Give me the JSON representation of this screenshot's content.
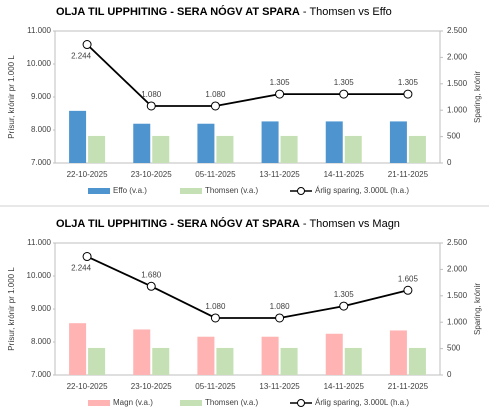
{
  "chart_data": [
    {
      "type": "bar",
      "title": "OLJA TIL UPPHITING - SERA NÓGV AT SPARA",
      "subtitle": "- Thomsen vs Effo",
      "y_label": "Prísur, krónir pr 1.000 L",
      "y2_label": "Sparing, krónir",
      "categories": [
        "22-10-2025",
        "23-10-2025",
        "05-11-2025",
        "13-11-2025",
        "14-11-2025",
        "21-11-2025"
      ],
      "series": [
        {
          "name": "Effo (v.a.)",
          "color": "#4e95d0",
          "values": [
            8580,
            8190,
            8190,
            8260,
            8260,
            8260
          ]
        },
        {
          "name": "Thomsen (v.a.)",
          "color": "#c5e0b4",
          "values": [
            7820,
            7820,
            7820,
            7820,
            7820,
            7820
          ]
        },
        {
          "name": "Árlig sparing, 3.000L (h.a.)",
          "color": "#000000",
          "type": "line",
          "axis": "y2",
          "values": [
            2244,
            1080,
            1080,
            1305,
            1305,
            1305
          ],
          "value_labels": [
            "2.244",
            "1.080",
            "1.080",
            "1.305",
            "1.305",
            "1.305"
          ]
        }
      ],
      "ylim": [
        7000,
        11000
      ],
      "yticks": [
        {
          "value": 7000,
          "label": "7.000"
        },
        {
          "value": 8000,
          "label": "8.000"
        },
        {
          "value": 9000,
          "label": "9.000"
        },
        {
          "value": 10000,
          "label": "10.000"
        },
        {
          "value": 11000,
          "label": "11.000"
        }
      ],
      "y2lim": [
        0,
        2500
      ],
      "y2ticks": [
        0,
        500,
        {
          "value": 1000,
          "label": "1.000"
        },
        {
          "value": 1500,
          "label": "1.500"
        },
        {
          "value": 2000,
          "label": "2.000"
        },
        {
          "value": 2500,
          "label": "2.500"
        }
      ]
    },
    {
      "type": "bar",
      "title": "OLJA TIL UPPHITING - SERA NÓGV AT SPARA",
      "subtitle": "- Thomsen vs Magn",
      "y_label": "Prísur, krónir pr 1.000 L",
      "y2_label": "Sparing, krónir",
      "categories": [
        "22-10-2025",
        "23-10-2025",
        "05-11-2025",
        "13-11-2025",
        "14-11-2025",
        "21-11-2025"
      ],
      "series": [
        {
          "name": "Magn (v.a.)",
          "color": "#ffb3b3",
          "values": [
            8570,
            8380,
            8160,
            8160,
            8250,
            8350
          ]
        },
        {
          "name": "Thomsen (v.a.)",
          "color": "#c5e0b4",
          "values": [
            7820,
            7820,
            7820,
            7820,
            7820,
            7820
          ]
        },
        {
          "name": "Árlig sparing, 3.000L (h.a.)",
          "color": "#000000",
          "type": "line",
          "axis": "y2",
          "values": [
            2244,
            1680,
            1080,
            1080,
            1305,
            1605
          ],
          "value_labels": [
            "2.244",
            "1.680",
            "1.080",
            "1.080",
            "1.305",
            "1.605"
          ]
        }
      ],
      "ylim": [
        7000,
        11000
      ],
      "yticks": [
        {
          "value": 7000,
          "label": "7.000"
        },
        {
          "value": 8000,
          "label": "8.000"
        },
        {
          "value": 9000,
          "label": "9.000"
        },
        {
          "value": 10000,
          "label": "10.000"
        },
        {
          "value": 11000,
          "label": "11.000"
        }
      ],
      "y2lim": [
        0,
        2500
      ],
      "y2ticks": [
        0,
        500,
        {
          "value": 1000,
          "label": "1.000"
        },
        {
          "value": 1500,
          "label": "1.500"
        },
        {
          "value": 2000,
          "label": "2.000"
        },
        {
          "value": 2500,
          "label": "2.500"
        }
      ]
    }
  ]
}
